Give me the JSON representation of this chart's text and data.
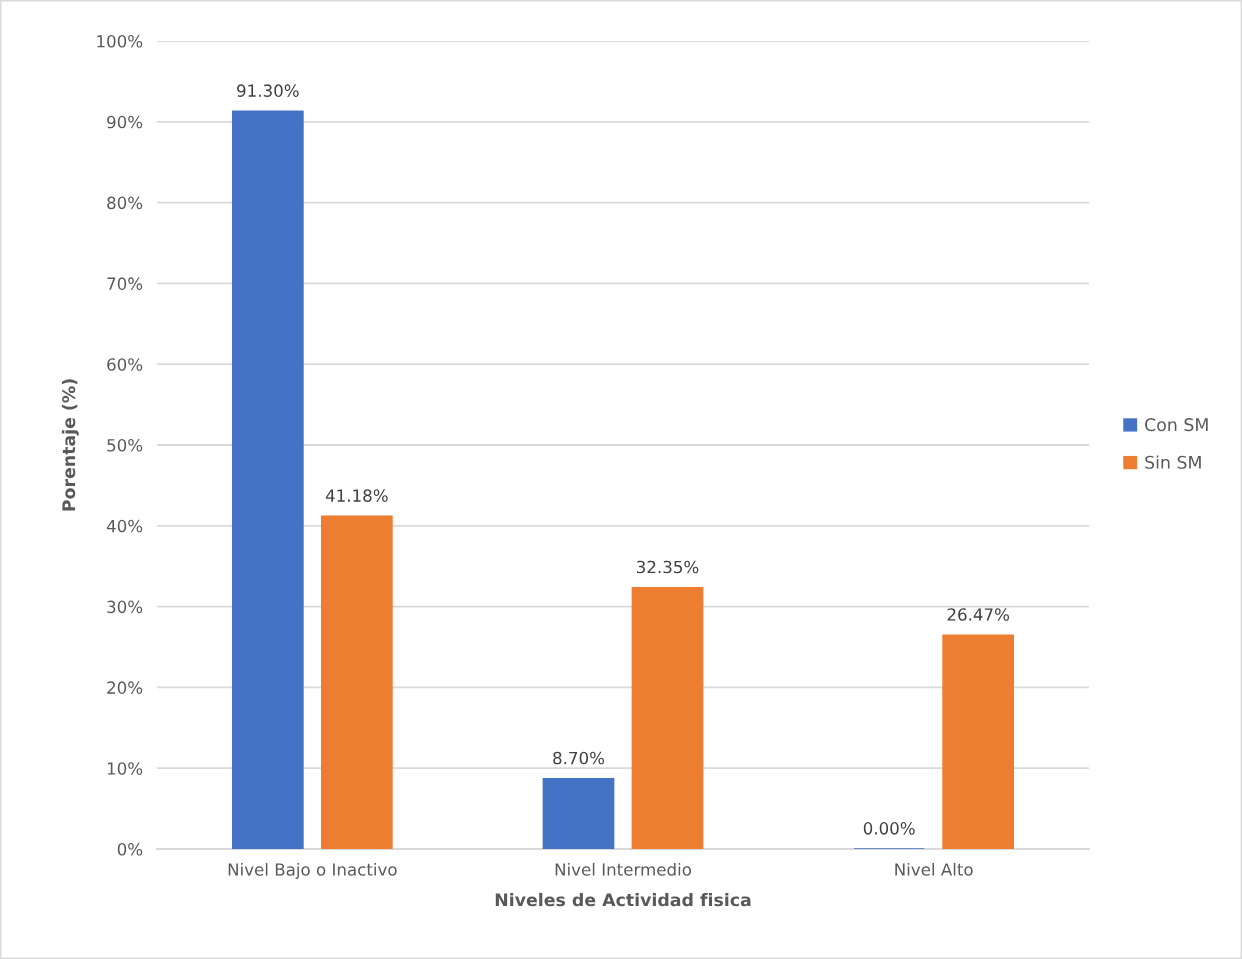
{
  "chart_data": {
    "type": "bar",
    "xlabel": "Niveles de Actividad fisica",
    "ylabel": "Porentaje (%)",
    "categories": [
      "Nivel Bajo o Inactivo",
      "Nivel Intermedio",
      "Nivel Alto"
    ],
    "series": [
      {
        "name": "Con SM",
        "color": "#4472c4",
        "values": [
          91.3,
          8.7,
          0.0
        ],
        "value_labels": [
          "91.30%",
          "8.70%",
          "0.00%"
        ]
      },
      {
        "name": "Sin SM",
        "color": "#ed7d31",
        "values": [
          41.18,
          32.35,
          26.47
        ],
        "value_labels": [
          "41.18%",
          "32.35%",
          "26.47%"
        ]
      }
    ],
    "ylim": [
      0,
      100
    ],
    "yticks": [
      {
        "value": 0,
        "label": "0%"
      },
      {
        "value": 10,
        "label": "10%"
      },
      {
        "value": 20,
        "label": "20%"
      },
      {
        "value": 30,
        "label": "30%"
      },
      {
        "value": 40,
        "label": "40%"
      },
      {
        "value": 50,
        "label": "50%"
      },
      {
        "value": 60,
        "label": "60%"
      },
      {
        "value": 70,
        "label": "70%"
      },
      {
        "value": 80,
        "label": "80%"
      },
      {
        "value": 90,
        "label": "90%"
      },
      {
        "value": 100,
        "label": "100%"
      }
    ],
    "grid": "y",
    "legend": "right"
  }
}
